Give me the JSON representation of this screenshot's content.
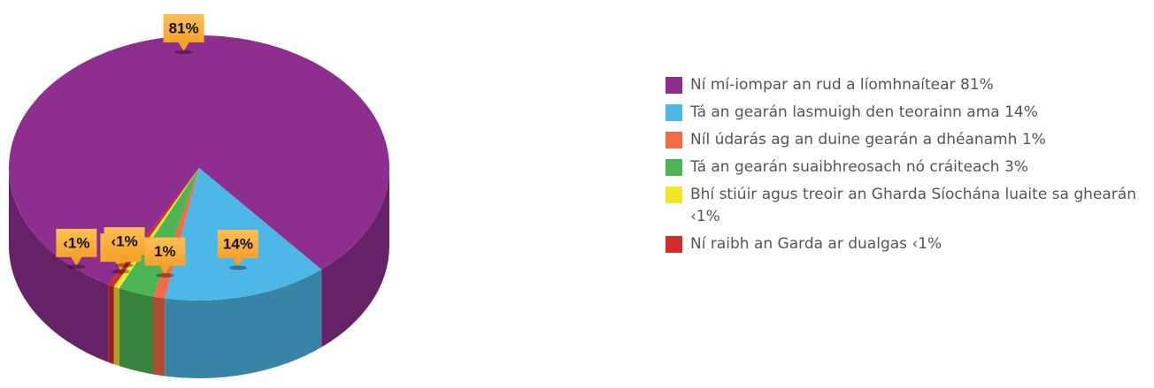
{
  "chart_data": {
    "type": "pie",
    "categories": [
      "Ní mí-iompar an rud a líomhnaítear",
      "Tá an gearán lasmuigh den teorainn ama",
      "Níl údarás ag an duine gearán a dhéanamh",
      "Tá an gearán suaibhreosach nó cráiteach",
      "Bhí stiúir agus treoir an Gharda Síochána luaite sa ghearán",
      "Ní raibh an Garda ar dualgas"
    ],
    "values": [
      81,
      14,
      1,
      3,
      0.5,
      0.5
    ],
    "value_labels": [
      "81%",
      "14%",
      "1%",
      "3%",
      "‹1%",
      "‹1%"
    ],
    "colors": [
      "#8e2f8f",
      "#4db8e8",
      "#f26b45",
      "#4db553",
      "#f2e52a",
      "#d42b2b"
    ]
  }
}
